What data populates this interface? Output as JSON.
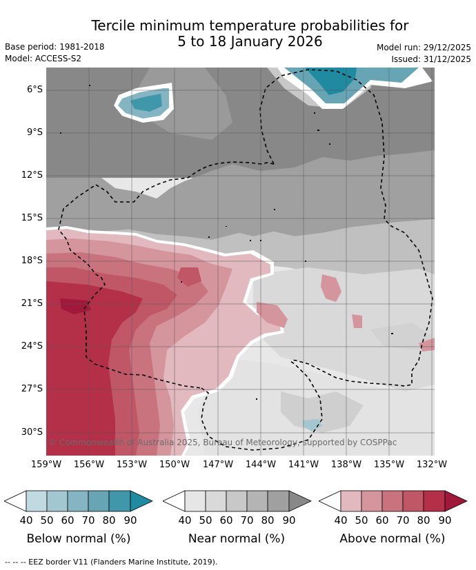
{
  "title": {
    "line1": "Tercile minimum temperature probabilities for",
    "line2": "5 to 18 January 2026"
  },
  "meta": {
    "base_period": "Base period: 1981-2018",
    "model": "Model: ACCESS-S2",
    "model_run": "Model run: 29/12/2025",
    "issued": "Issued: 31/12/2025"
  },
  "map": {
    "copyright": "© Commonwealth of Australia 2025, Bureau of Meteorology, supported by COSPPac",
    "lat_labels": [
      "6°S",
      "9°S",
      "12°S",
      "15°S",
      "18°S",
      "21°S",
      "24°S",
      "27°S",
      "30°S"
    ],
    "lon_labels": [
      "159°W",
      "156°W",
      "153°W",
      "150°W",
      "147°W",
      "144°W",
      "141°W",
      "138°W",
      "135°W",
      "132°W"
    ],
    "colors": {
      "below": [
        "#c1d9e0",
        "#a3c7d1",
        "#85b5c2",
        "#67a4b4",
        "#3f97a9",
        "#1f8aa0"
      ],
      "near": [
        "#e6e6e6",
        "#d9d9d9",
        "#c8c8c8",
        "#b4b4b4",
        "#a0a0a0",
        "#888888"
      ],
      "above": [
        "#e2b9bf",
        "#d5959d",
        "#c9737f",
        "#bf5766",
        "#b33048",
        "#a0193a"
      ]
    }
  },
  "legend": {
    "ticks": [
      "40",
      "50",
      "60",
      "70",
      "80",
      "90"
    ],
    "below_title": "Below normal (%)",
    "near_title": "Near normal (%)",
    "above_title": "Above normal (%)"
  },
  "footer": "--  --  -- EEZ border V11 (Flanders Marine Institute, 2019)."
}
